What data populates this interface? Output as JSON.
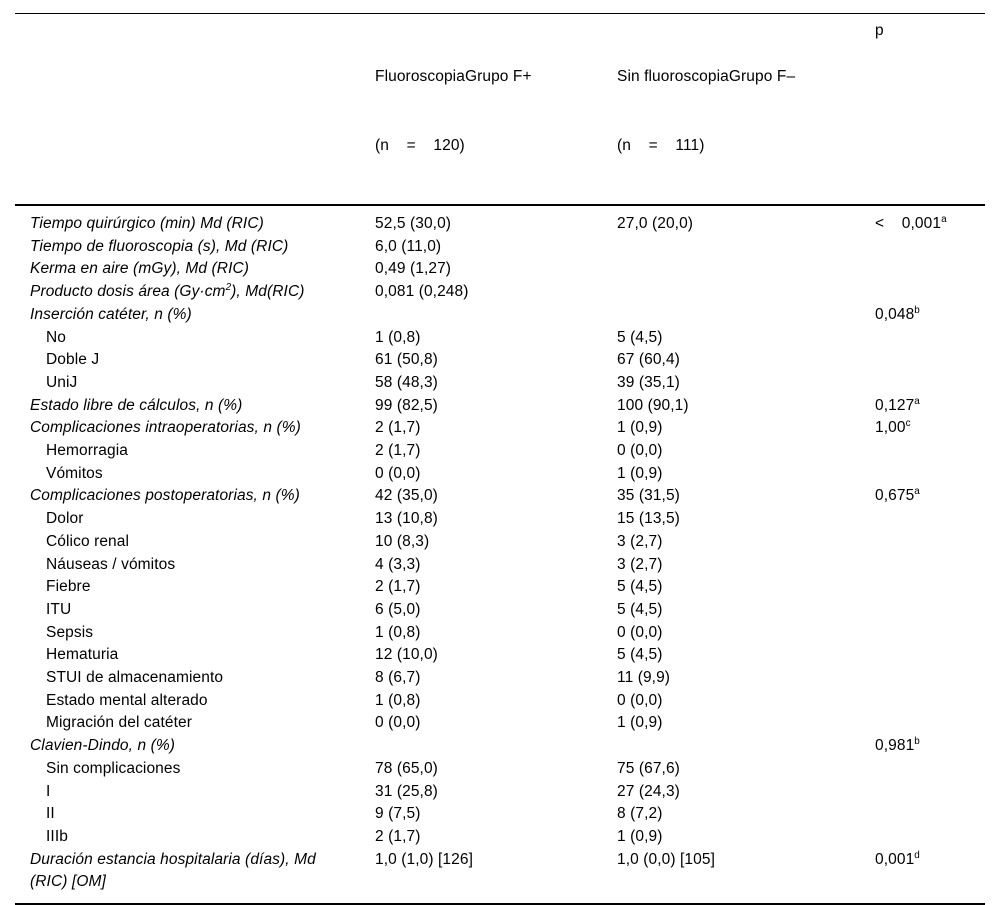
{
  "table": {
    "header": {
      "variables_col": "",
      "group_f_plus": {
        "line1": "FluoroscopiaGrupo F+",
        "line2": "(n    =    120)"
      },
      "group_f_minus": {
        "line1": "Sin fluoroscopiaGrupo F–",
        "line2": "(n    =    111)"
      },
      "p_label": "p"
    },
    "rows": [
      {
        "label": "Tiempo quirúrgico (min) Md (RIC)",
        "sup": "",
        "label_end": "",
        "italic": true,
        "indent": false,
        "f_plus": "52,5 (30,0)",
        "f_minus": "27,0 (20,0)",
        "p": "<    0,001",
        "p_sup": "a"
      },
      {
        "label": "Tiempo de fluoroscopia (s), Md (RIC)",
        "sup": "",
        "label_end": "",
        "italic": true,
        "indent": false,
        "f_plus": "6,0 (11,0)",
        "f_minus": "",
        "p": "",
        "p_sup": ""
      },
      {
        "label": "Kerma en aire (mGy), Md (RIC)",
        "sup": "",
        "label_end": "",
        "italic": true,
        "indent": false,
        "f_plus": "0,49 (1,27)",
        "f_minus": "",
        "p": "",
        "p_sup": ""
      },
      {
        "label": "Producto dosis área (Gy·cm",
        "sup": "2",
        "label_end": "), Md(RIC)",
        "italic": true,
        "indent": false,
        "f_plus": "0,081 (0,248)",
        "f_minus": "",
        "p": "",
        "p_sup": ""
      },
      {
        "label": "Inserción catéter, n (%)",
        "sup": "",
        "label_end": "",
        "italic": true,
        "indent": false,
        "f_plus": "",
        "f_minus": "",
        "p": "0,048",
        "p_sup": "b"
      },
      {
        "label": "No",
        "sup": "",
        "label_end": "",
        "italic": false,
        "indent": true,
        "f_plus": "1 (0,8)",
        "f_minus": "5 (4,5)",
        "p": "",
        "p_sup": ""
      },
      {
        "label": "Doble J",
        "sup": "",
        "label_end": "",
        "italic": false,
        "indent": true,
        "f_plus": "61 (50,8)",
        "f_minus": "67 (60,4)",
        "p": "",
        "p_sup": ""
      },
      {
        "label": "UniJ",
        "sup": "",
        "label_end": "",
        "italic": false,
        "indent": true,
        "f_plus": "58 (48,3)",
        "f_minus": "39 (35,1)",
        "p": "",
        "p_sup": ""
      },
      {
        "label": "Estado libre de cálculos, n (%)",
        "sup": "",
        "label_end": "",
        "italic": true,
        "indent": false,
        "f_plus": "99 (82,5)",
        "f_minus": "100 (90,1)",
        "p": "0,127",
        "p_sup": "a"
      },
      {
        "label": "Complicaciones intraoperatorias, n (%)",
        "sup": "",
        "label_end": "",
        "italic": true,
        "indent": false,
        "f_plus": "2 (1,7)",
        "f_minus": "1 (0,9)",
        "p": "1,00",
        "p_sup": "c"
      },
      {
        "label": "Hemorragia",
        "sup": "",
        "label_end": "",
        "italic": false,
        "indent": true,
        "f_plus": "2 (1,7)",
        "f_minus": "0 (0,0)",
        "p": "",
        "p_sup": ""
      },
      {
        "label": "Vómitos",
        "sup": "",
        "label_end": "",
        "italic": false,
        "indent": true,
        "f_plus": "0 (0,0)",
        "f_minus": "1 (0,9)",
        "p": "",
        "p_sup": ""
      },
      {
        "label": "Complicaciones postoperatorias, n (%)",
        "sup": "",
        "label_end": "",
        "italic": true,
        "indent": false,
        "f_plus": "42 (35,0)",
        "f_minus": "35 (31,5)",
        "p": "0,675",
        "p_sup": "a"
      },
      {
        "label": "Dolor",
        "sup": "",
        "label_end": "",
        "italic": false,
        "indent": true,
        "f_plus": "13 (10,8)",
        "f_minus": "15 (13,5)",
        "p": "",
        "p_sup": ""
      },
      {
        "label": "Cólico renal",
        "sup": "",
        "label_end": "",
        "italic": false,
        "indent": true,
        "f_plus": "10 (8,3)",
        "f_minus": "3 (2,7)",
        "p": "",
        "p_sup": ""
      },
      {
        "label": "Náuseas / vómitos",
        "sup": "",
        "label_end": "",
        "italic": false,
        "indent": true,
        "f_plus": "4 (3,3)",
        "f_minus": "3 (2,7)",
        "p": "",
        "p_sup": ""
      },
      {
        "label": "Fiebre",
        "sup": "",
        "label_end": "",
        "italic": false,
        "indent": true,
        "f_plus": "2 (1,7)",
        "f_minus": "5 (4,5)",
        "p": "",
        "p_sup": ""
      },
      {
        "label": "ITU",
        "sup": "",
        "label_end": "",
        "italic": false,
        "indent": true,
        "f_plus": "6 (5,0)",
        "f_minus": "5 (4,5)",
        "p": "",
        "p_sup": ""
      },
      {
        "label": "Sepsis",
        "sup": "",
        "label_end": "",
        "italic": false,
        "indent": true,
        "f_plus": "1 (0,8)",
        "f_minus": "0 (0,0)",
        "p": "",
        "p_sup": ""
      },
      {
        "label": "Hematuria",
        "sup": "",
        "label_end": "",
        "italic": false,
        "indent": true,
        "f_plus": "12 (10,0)",
        "f_minus": "5 (4,5)",
        "p": "",
        "p_sup": ""
      },
      {
        "label": "STUI de almacenamiento",
        "sup": "",
        "label_end": "",
        "italic": false,
        "indent": true,
        "f_plus": "8 (6,7)",
        "f_minus": "11 (9,9)",
        "p": "",
        "p_sup": ""
      },
      {
        "label": "Estado mental alterado",
        "sup": "",
        "label_end": "",
        "italic": false,
        "indent": true,
        "f_plus": "1 (0,8)",
        "f_minus": "0 (0,0)",
        "p": "",
        "p_sup": ""
      },
      {
        "label": "Migración del catéter",
        "sup": "",
        "label_end": "",
        "italic": false,
        "indent": true,
        "f_plus": "0 (0,0)",
        "f_minus": "1 (0,9)",
        "p": "",
        "p_sup": ""
      },
      {
        "label": "Clavien-Dindo, n (%)",
        "sup": "",
        "label_end": "",
        "italic": true,
        "indent": false,
        "f_plus": "",
        "f_minus": "",
        "p": "0,981",
        "p_sup": "b"
      },
      {
        "label": "Sin complicaciones",
        "sup": "",
        "label_end": "",
        "italic": false,
        "indent": true,
        "f_plus": "78 (65,0)",
        "f_minus": "75 (67,6)",
        "p": "",
        "p_sup": ""
      },
      {
        "label": "I",
        "sup": "",
        "label_end": "",
        "italic": false,
        "indent": true,
        "f_plus": "31 (25,8)",
        "f_minus": "27 (24,3)",
        "p": "",
        "p_sup": ""
      },
      {
        "label": "II",
        "sup": "",
        "label_end": "",
        "italic": false,
        "indent": true,
        "f_plus": "9 (7,5)",
        "f_minus": "8 (7,2)",
        "p": "",
        "p_sup": ""
      },
      {
        "label": "IIIb",
        "sup": "",
        "label_end": "",
        "italic": false,
        "indent": true,
        "f_plus": "2 (1,7)",
        "f_minus": "1 (0,9)",
        "p": "",
        "p_sup": ""
      },
      {
        "label": "Duración estancia hospitalaria (días), Md\n(RIC) [OM]",
        "sup": "",
        "label_end": "",
        "italic": true,
        "indent": false,
        "f_plus": "1,0 (1,0) [126]",
        "f_minus": "1,0 (0,0) [105]",
        "p": "0,001",
        "p_sup": "d"
      }
    ]
  }
}
